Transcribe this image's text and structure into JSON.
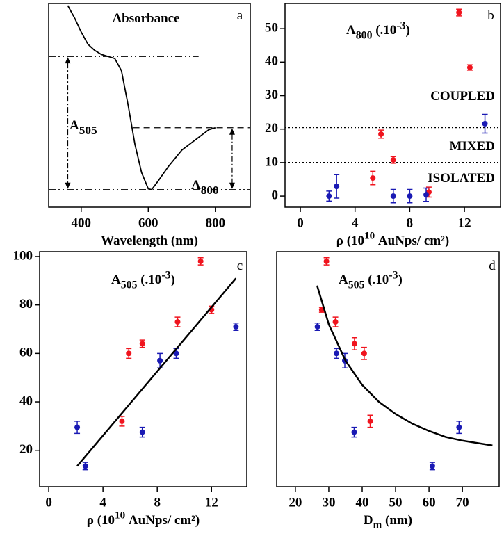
{
  "chart_data": [
    {
      "type": "line",
      "color": "#000000",
      "x": [
        360,
        380,
        400,
        420,
        440,
        460,
        480,
        500,
        520,
        540,
        560,
        580,
        600,
        610,
        630,
        660,
        700,
        740,
        780,
        800
      ],
      "values": [
        0.99,
        0.93,
        0.86,
        0.8,
        0.77,
        0.75,
        0.74,
        0.73,
        0.67,
        0.5,
        0.31,
        0.17,
        0.09,
        0.086,
        0.13,
        0.2,
        0.28,
        0.33,
        0.38,
        0.39
      ],
      "xlim": [
        303,
        904
      ],
      "ylim": [
        0,
        1
      ],
      "xticks": [
        400,
        600,
        800
      ],
      "xlabel": [
        {
          "text": "Wavelength (nm)"
        }
      ],
      "annotations": [
        {
          "parts": [
            {
              "text": "Absorbance"
            }
          ]
        },
        {
          "parts": [
            {
              "text": "a"
            }
          ]
        },
        {
          "parts": [
            {
              "text": "A"
            },
            {
              "text": "505",
              "shift": "sub"
            }
          ]
        },
        {
          "parts": [
            {
              "text": "A"
            },
            {
              "text": "800",
              "shift": "sub"
            }
          ]
        }
      ]
    },
    {
      "type": "scatter",
      "series": [
        {
          "color": "#f0141e",
          "x": [
            5.9,
            6.8,
            5.3,
            9.4,
            11.6,
            12.4
          ],
          "values": [
            18.5,
            10.8,
            5.4,
            1.2,
            54.8,
            38.4
          ],
          "errors": [
            1.2,
            1,
            2,
            1.5,
            1,
            0.8
          ]
        },
        {
          "color": "#1a1ab4",
          "x": [
            2.1,
            2.65,
            6.8,
            8.0,
            9.2,
            13.5
          ],
          "values": [
            0,
            2.9,
            0,
            0,
            0.4,
            21.6
          ],
          "errors": [
            1.5,
            3.5,
            2,
            2,
            2,
            2.8
          ]
        }
      ],
      "hlines": [
        20.5,
        10
      ],
      "xlim": [
        -1.12,
        14.64
      ],
      "ylim": [
        -3.3,
        57.5
      ],
      "xticks": [
        0,
        4,
        8,
        12
      ],
      "yticks": [
        0,
        10,
        20,
        30,
        40,
        50
      ],
      "xlabel": [
        {
          "text": "ρ (10"
        },
        {
          "text": "10",
          "shift": "super"
        },
        {
          "text": " AuNps/ cm²)"
        }
      ],
      "annotations": [
        {
          "parts": [
            {
              "text": "A"
            },
            {
              "text": "800",
              "shift": "sub"
            },
            {
              "text": " (.10"
            },
            {
              "text": "-3",
              "shift": "super"
            },
            {
              "text": ")"
            }
          ]
        },
        {
          "parts": [
            {
              "text": "b"
            }
          ]
        },
        {
          "parts": [
            {
              "text": "COUPLED"
            }
          ]
        },
        {
          "parts": [
            {
              "text": "MIXED"
            }
          ]
        },
        {
          "parts": [
            {
              "text": "ISOLATED"
            }
          ]
        }
      ]
    },
    {
      "type": "scatter",
      "series": [
        {
          "color": "#f0141e",
          "x": [
            5.4,
            5.9,
            6.9,
            9.5,
            11.2,
            12.0
          ],
          "values": [
            32,
            60,
            64,
            73,
            98,
            78
          ],
          "errors": [
            2,
            2,
            1.5,
            2,
            1.5,
            1.5
          ]
        },
        {
          "color": "#1a1ab4",
          "x": [
            2.1,
            2.7,
            6.9,
            8.2,
            9.4,
            13.8
          ],
          "values": [
            29.5,
            13.5,
            27.5,
            57,
            60,
            71
          ],
          "errors": [
            2.5,
            1.5,
            2,
            3,
            2,
            1.5
          ]
        },
        {
          "color": "#000000",
          "style": "line",
          "x": [
            2.1,
            13.8
          ],
          "values": [
            13.5,
            91
          ]
        }
      ],
      "xlim": [
        -0.67,
        14.6
      ],
      "ylim": [
        5,
        102
      ],
      "xticks": [
        0,
        4,
        8,
        12
      ],
      "yticks": [
        20,
        40,
        60,
        80,
        100
      ],
      "xlabel": [
        {
          "text": "ρ (10"
        },
        {
          "text": "10",
          "shift": "super"
        },
        {
          "text": " AuNps/ cm²)"
        }
      ],
      "annotations": [
        {
          "parts": [
            {
              "text": "A"
            },
            {
              "text": "505",
              "shift": "sub"
            },
            {
              "text": " (.10"
            },
            {
              "text": "-3",
              "shift": "super"
            },
            {
              "text": ")"
            }
          ]
        },
        {
          "parts": [
            {
              "text": "c"
            }
          ]
        }
      ]
    },
    {
      "type": "scatter",
      "series": [
        {
          "color": "#f0141e",
          "x": [
            27.9,
            29.3,
            32,
            37.7,
            40.6,
            42.4
          ],
          "values": [
            78,
            98,
            73,
            64,
            60,
            32
          ],
          "errors": [
            1,
            1.5,
            2,
            2.5,
            2.5,
            2.5
          ]
        },
        {
          "color": "#1a1ab4",
          "x": [
            26.6,
            32.3,
            34.8,
            37.6,
            61,
            69
          ],
          "values": [
            71,
            60,
            57,
            27.5,
            13.5,
            29.5
          ],
          "errors": [
            1.5,
            2,
            3,
            2,
            1.5,
            2.5
          ]
        },
        {
          "color": "#000000",
          "style": "line",
          "x": [
            26.5,
            30,
            35,
            40,
            45,
            50,
            55,
            60,
            65,
            70,
            79
          ],
          "values": [
            88,
            72,
            57,
            47,
            40,
            35,
            31,
            28,
            25.5,
            24,
            22
          ]
        }
      ],
      "xlim": [
        14.4,
        81
      ],
      "ylim": [
        5,
        102
      ],
      "xticks": [
        20,
        30,
        40,
        50,
        60,
        70
      ],
      "xlabel": [
        {
          "text": "D"
        },
        {
          "text": "m",
          "shift": "sub"
        },
        {
          "text": " (nm)"
        }
      ],
      "annotations": [
        {
          "parts": [
            {
              "text": "A"
            },
            {
              "text": "505",
              "shift": "sub"
            },
            {
              "text": " (.10"
            },
            {
              "text": "-3",
              "shift": "super"
            },
            {
              "text": ")"
            }
          ]
        },
        {
          "parts": [
            {
              "text": "d"
            }
          ]
        }
      ]
    }
  ]
}
